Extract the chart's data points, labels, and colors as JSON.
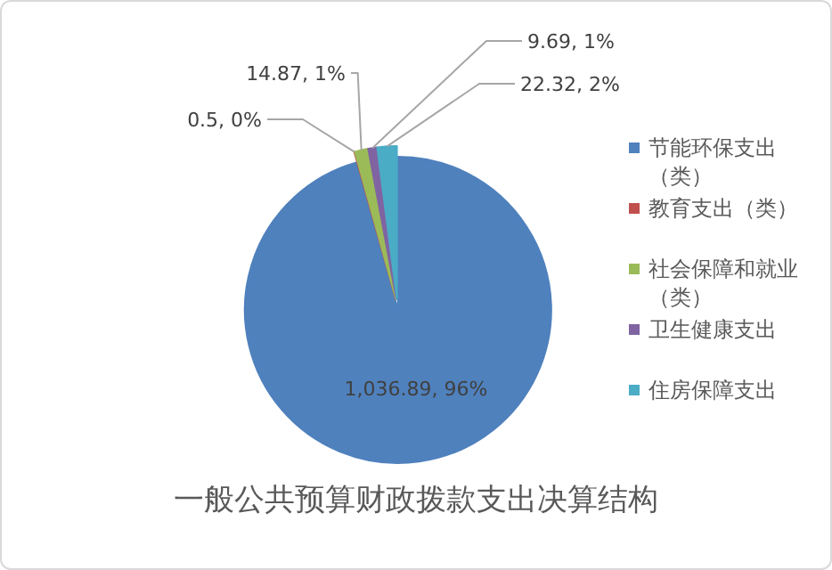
{
  "chart_data": {
    "type": "pie",
    "title": "一般公共预算财政拨款支出决算结构",
    "categories": [
      "节能环保支出（类）",
      "教育支出（类）",
      "社会保障和就业（类）",
      "卫生健康支出",
      "住房保障支出"
    ],
    "values": [
      1036.89,
      0.5,
      14.87,
      9.69,
      22.32
    ],
    "colors": [
      "#4f81bd",
      "#c0504d",
      "#9bbb59",
      "#8064a2",
      "#4bacc6"
    ],
    "value_labels": [
      "1,036.89, 96%",
      "0.5, 0%",
      "14.87, 1%",
      "9.69, 1%",
      "22.32, 2%"
    ],
    "legend": "right"
  }
}
